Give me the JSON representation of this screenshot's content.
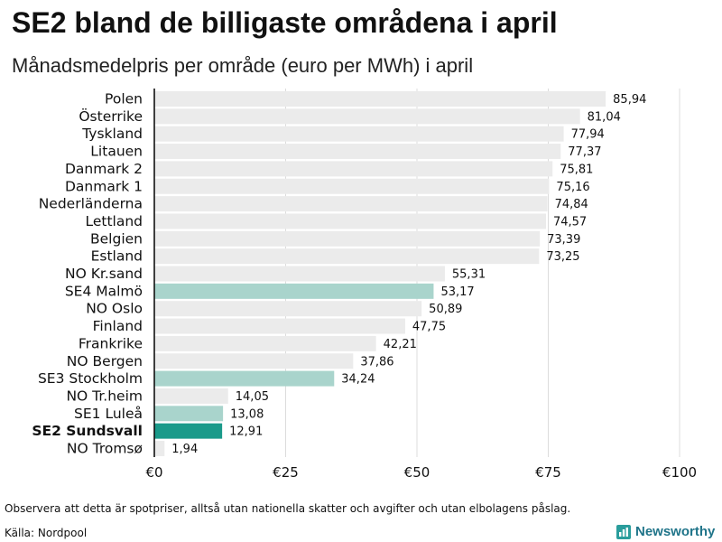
{
  "chart_data": {
    "type": "bar",
    "orientation": "horizontal",
    "title": "SE2 bland de billigaste områdena i april",
    "subtitle": "Månadsmedelpris per område (euro per MWh) i april",
    "categories": [
      "Polen",
      "Österrike",
      "Tyskland",
      "Litauen",
      "Danmark 2",
      "Danmark 1",
      "Nederländerna",
      "Lettland",
      "Belgien",
      "Estland",
      "NO Kr.sand",
      "SE4 Malmö",
      "NO Oslo",
      "Finland",
      "Frankrike",
      "NO Bergen",
      "SE3 Stockholm",
      "NO Tr.heim",
      "SE1 Luleå",
      "SE2 Sundsvall",
      "NO Tromsø"
    ],
    "values": [
      85.94,
      81.04,
      77.94,
      77.37,
      75.81,
      75.16,
      74.84,
      74.57,
      73.39,
      73.25,
      55.31,
      53.17,
      50.89,
      47.75,
      42.21,
      37.86,
      34.24,
      14.05,
      13.08,
      12.91,
      1.94
    ],
    "xlim": [
      0,
      100
    ],
    "x_ticks": [
      0,
      25,
      50,
      75,
      100
    ],
    "x_tick_labels": [
      "€0",
      "€25",
      "€50",
      "€75",
      "€100"
    ],
    "grid": true,
    "highlighted": [
      "SE4 Malmö",
      "SE3 Stockholm",
      "SE1 Luleå"
    ],
    "focus": "SE2 Sundsvall",
    "colors": {
      "bar": "#ebebeb",
      "highlighted": "#a9d4cc",
      "focus": "#1a9a8a",
      "axis": "#111111",
      "grid": "#dcdcdc"
    }
  },
  "footer": {
    "note": "Observera att detta är spotpriser, alltså utan nationella skatter och avgifter och utan elbolagens påslag.",
    "source": "Källa: Nordpool"
  },
  "logo": {
    "wordmark": "Newsworthy",
    "icon": "bar-chart-logo-icon",
    "color": "#1f7489",
    "icon_color": "#2a9d9c"
  }
}
